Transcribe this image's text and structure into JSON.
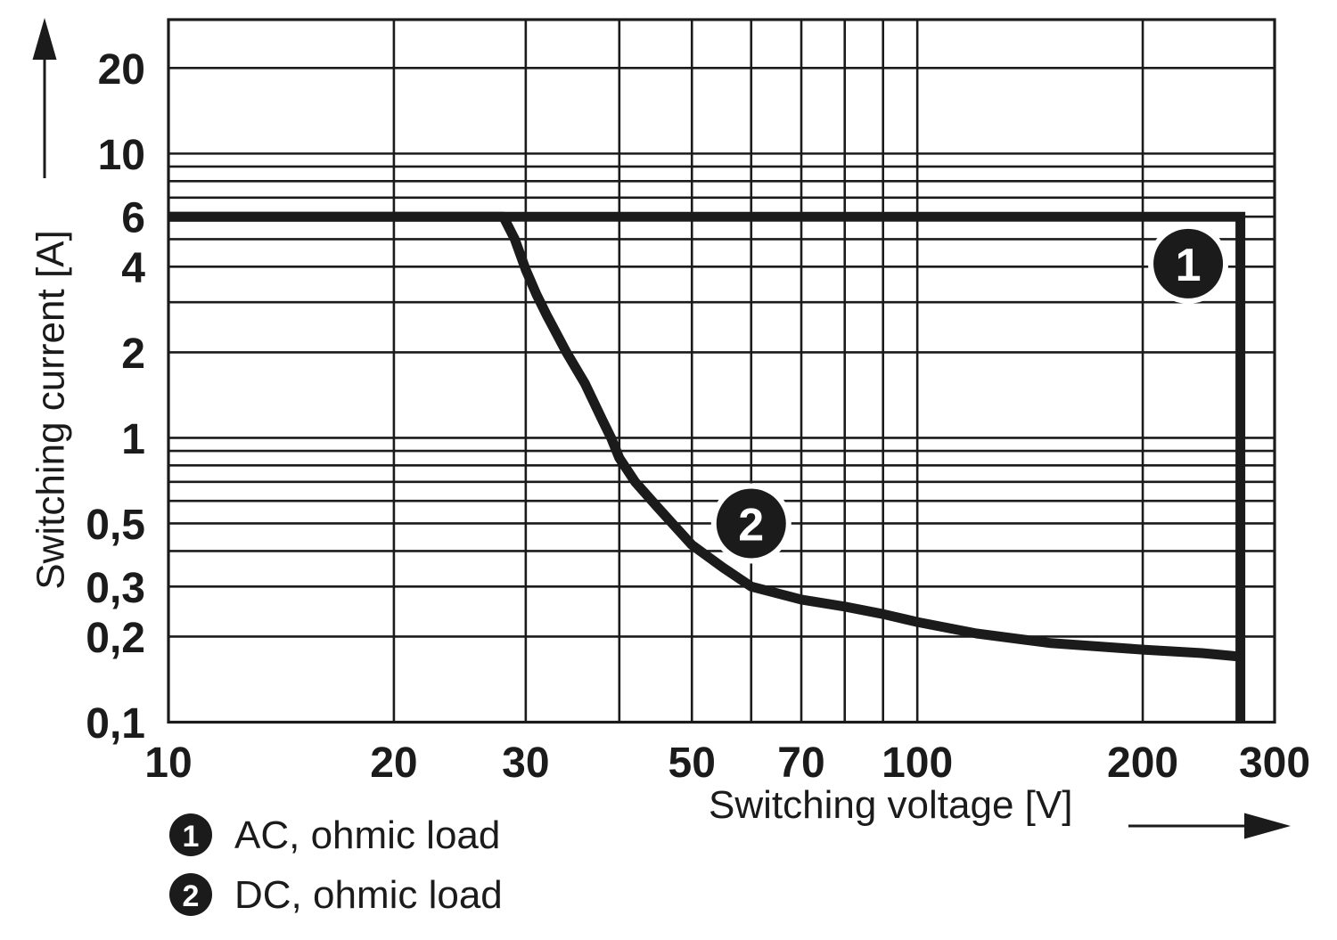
{
  "chart_data": {
    "type": "line",
    "title": "",
    "x_title": "Switching voltage [V]",
    "y_title": "Switching current [A]",
    "x_scale": "log",
    "y_scale": "log",
    "xlim": [
      10,
      300
    ],
    "ylim": [
      0.1,
      29.6
    ],
    "grid": "on",
    "x_gridlines": [
      20,
      30,
      40,
      50,
      60,
      70,
      80,
      90,
      100,
      200
    ],
    "y_gridlines": [
      0.2,
      0.3,
      0.4,
      0.5,
      0.6,
      0.7,
      0.8,
      0.9,
      1,
      2,
      3,
      4,
      5,
      6,
      7,
      8,
      9,
      10,
      20
    ],
    "x_ticks": [
      {
        "v": 10,
        "label": "10"
      },
      {
        "v": 20,
        "label": "20"
      },
      {
        "v": 30,
        "label": "30"
      },
      {
        "v": 50,
        "label": "50"
      },
      {
        "v": 70,
        "label": "70"
      },
      {
        "v": 100,
        "label": "100"
      },
      {
        "v": 200,
        "label": "200"
      },
      {
        "v": 300,
        "label": "300"
      }
    ],
    "y_ticks": [
      {
        "v": 20,
        "label": "20"
      },
      {
        "v": 10,
        "label": "10"
      },
      {
        "v": 6,
        "label": "6"
      },
      {
        "v": 4,
        "label": "4"
      },
      {
        "v": 2,
        "label": "2"
      },
      {
        "v": 1,
        "label": "1"
      },
      {
        "v": 0.5,
        "label": "0,5"
      },
      {
        "v": 0.3,
        "label": "0,3"
      },
      {
        "v": 0.2,
        "label": "0,2"
      },
      {
        "v": 0.1,
        "label": "0,1"
      }
    ],
    "series": [
      {
        "name": "AC, ohmic load",
        "marker": "1",
        "points": [
          [
            10,
            6
          ],
          [
            270,
            6
          ],
          [
            270,
            0.1
          ]
        ]
      },
      {
        "name": "DC, ohmic load",
        "marker": "2",
        "points": [
          [
            10,
            6
          ],
          [
            28,
            6
          ],
          [
            29,
            5
          ],
          [
            30,
            3.9
          ],
          [
            31,
            3.2
          ],
          [
            32,
            2.7
          ],
          [
            34,
            2.0
          ],
          [
            36,
            1.55
          ],
          [
            38,
            1.15
          ],
          [
            39,
            1.0
          ],
          [
            40,
            0.85
          ],
          [
            42,
            0.7
          ],
          [
            45,
            0.57
          ],
          [
            50,
            0.42
          ],
          [
            55,
            0.35
          ],
          [
            60,
            0.3
          ],
          [
            70,
            0.27
          ],
          [
            80,
            0.255
          ],
          [
            90,
            0.24
          ],
          [
            100,
            0.225
          ],
          [
            120,
            0.205
          ],
          [
            150,
            0.19
          ],
          [
            200,
            0.18
          ],
          [
            240,
            0.175
          ],
          [
            270,
            0.17
          ]
        ]
      }
    ],
    "curve_markers": [
      {
        "label": "1",
        "x": 230,
        "y": 4.1
      },
      {
        "label": "2",
        "x": 60,
        "y": 0.5
      }
    ],
    "legend": {
      "position": "below-left",
      "items": [
        {
          "num": "1",
          "label": "AC, ohmic load"
        },
        {
          "num": "2",
          "label": "DC, ohmic load"
        }
      ]
    },
    "line_color": "#1b1b1b"
  }
}
